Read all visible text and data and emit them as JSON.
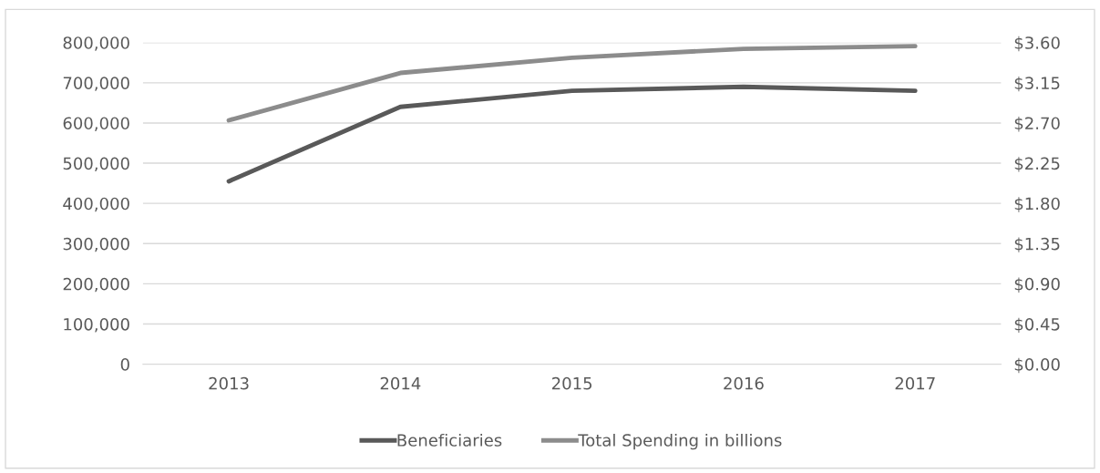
{
  "chart_data": {
    "type": "line",
    "categories": [
      "2013",
      "2014",
      "2015",
      "2016",
      "2017"
    ],
    "series": [
      {
        "name": "Beneficiaries",
        "color": "#595959",
        "values": [
          455000,
          640000,
          680000,
          690000,
          680000
        ]
      },
      {
        "name": "Total Spending in billions",
        "color": "#8c8c8c",
        "axis": "y2",
        "values": [
          2.73,
          3.26,
          3.43,
          3.53,
          3.56
        ]
      }
    ],
    "ylim": [
      0,
      800000
    ],
    "yticks": [
      {
        "value": 0,
        "label": "0"
      },
      {
        "value": 100000,
        "label": "100,000"
      },
      {
        "value": 200000,
        "label": "200,000"
      },
      {
        "value": 300000,
        "label": "300,000"
      },
      {
        "value": 400000,
        "label": "400,000"
      },
      {
        "value": 500000,
        "label": "500,000"
      },
      {
        "value": 600000,
        "label": "600,000"
      },
      {
        "value": 700000,
        "label": "700,000"
      },
      {
        "value": 800000,
        "label": "800,000"
      }
    ],
    "y2lim": [
      0,
      3.6
    ],
    "y2ticks": [
      {
        "value": 0,
        "label": "$0.00"
      },
      {
        "value": 0.45,
        "label": "$0.45"
      },
      {
        "value": 0.9,
        "label": "$0.90"
      },
      {
        "value": 1.35,
        "label": "$1.35"
      },
      {
        "value": 1.8,
        "label": "$1.80"
      },
      {
        "value": 2.25,
        "label": "$2.25"
      },
      {
        "value": 2.7,
        "label": "$2.70"
      },
      {
        "value": 3.15,
        "label": "$3.15"
      },
      {
        "value": 3.6,
        "label": "$3.60"
      }
    ],
    "grid": "y",
    "legend": "bottom",
    "marker": "none",
    "line_style": "solid"
  }
}
